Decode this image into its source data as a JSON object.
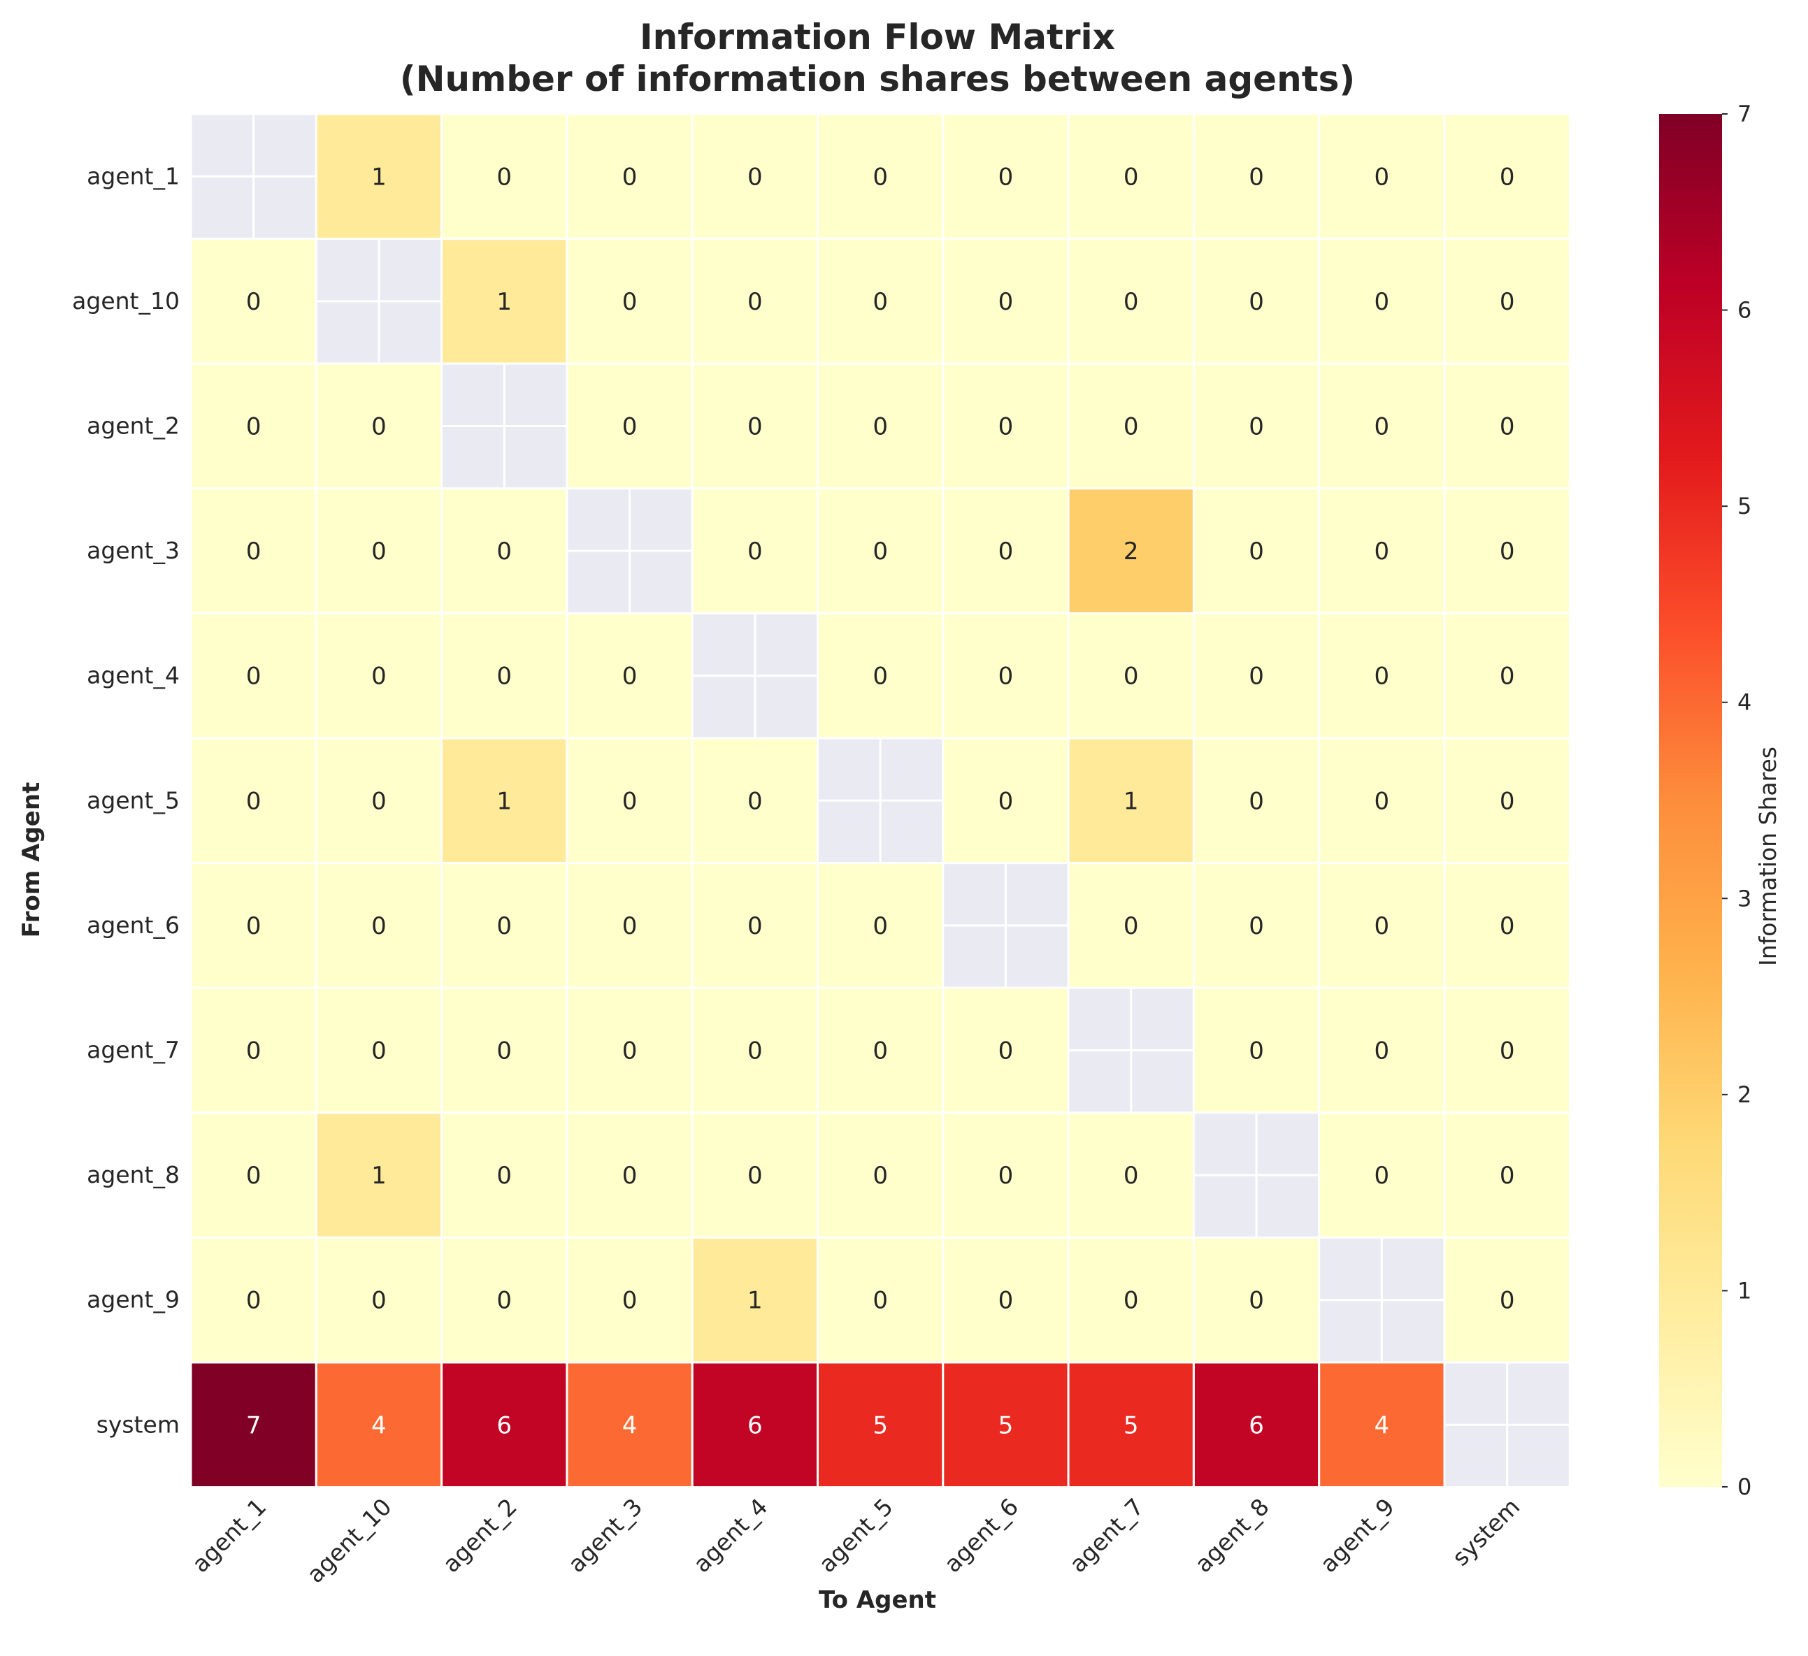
{
  "chart_data": {
    "type": "heatmap",
    "title": "Information Flow Matrix\n(Number of information shares between agents)",
    "xlabel": "To Agent",
    "ylabel": "From Agent",
    "rows": [
      "agent_1",
      "agent_10",
      "agent_2",
      "agent_3",
      "agent_4",
      "agent_5",
      "agent_6",
      "agent_7",
      "agent_8",
      "agent_9",
      "system"
    ],
    "cols": [
      "agent_1",
      "agent_10",
      "agent_2",
      "agent_3",
      "agent_4",
      "agent_5",
      "agent_6",
      "agent_7",
      "agent_8",
      "agent_9",
      "system"
    ],
    "values": [
      [
        null,
        1,
        0,
        0,
        0,
        0,
        0,
        0,
        0,
        0,
        0
      ],
      [
        0,
        null,
        1,
        0,
        0,
        0,
        0,
        0,
        0,
        0,
        0
      ],
      [
        0,
        0,
        null,
        0,
        0,
        0,
        0,
        0,
        0,
        0,
        0
      ],
      [
        0,
        0,
        0,
        null,
        0,
        0,
        0,
        2,
        0,
        0,
        0
      ],
      [
        0,
        0,
        0,
        0,
        null,
        0,
        0,
        0,
        0,
        0,
        0
      ],
      [
        0,
        0,
        1,
        0,
        0,
        null,
        0,
        1,
        0,
        0,
        0
      ],
      [
        0,
        0,
        0,
        0,
        0,
        0,
        null,
        0,
        0,
        0,
        0
      ],
      [
        0,
        0,
        0,
        0,
        0,
        0,
        0,
        null,
        0,
        0,
        0
      ],
      [
        0,
        1,
        0,
        0,
        0,
        0,
        0,
        0,
        null,
        0,
        0
      ],
      [
        0,
        0,
        0,
        0,
        1,
        0,
        0,
        0,
        0,
        null,
        0
      ],
      [
        7,
        4,
        6,
        4,
        6,
        5,
        5,
        5,
        6,
        4,
        null
      ]
    ],
    "colorbar": {
      "label": "Information Shares",
      "range": [
        0,
        7
      ],
      "ticks": [
        0,
        1,
        2,
        3,
        4,
        5,
        6,
        7
      ],
      "colormap": "YlOrRd"
    },
    "masked_color": "#eaeaf2",
    "cell_line_color": "#ffffff",
    "colors": [
      "#ffffcc",
      "#ffeda0",
      "#fed976",
      "#feb24c",
      "#fd8d3c",
      "#fc4e2a",
      "#e31a1c",
      "#bd0026",
      "#800026"
    ]
  }
}
